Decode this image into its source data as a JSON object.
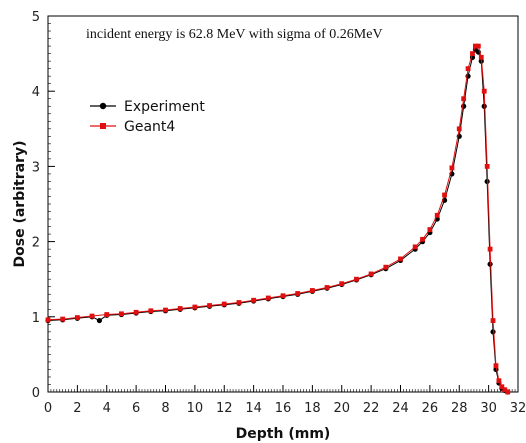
{
  "chart_data": {
    "type": "line",
    "xlabel": "Depth (mm)",
    "ylabel": "Dose (arbitrary)",
    "xlim": [
      0,
      32
    ],
    "ylim": [
      0,
      5
    ],
    "xticks": [
      "0",
      "2",
      "4",
      "6",
      "8",
      "10",
      "12",
      "14",
      "16",
      "18",
      "20",
      "22",
      "24",
      "26",
      "28",
      "30",
      "32"
    ],
    "yticks": [
      "0",
      "1",
      "2",
      "3",
      "4",
      "5"
    ],
    "annotation": "incident energy is 62.8 MeV with sigma of 0.26MeV",
    "legend_position": "upper-left",
    "grid": false,
    "series": [
      {
        "name": "Experiment",
        "color": "#000000",
        "marker": "circle",
        "x": [
          0,
          1,
          2,
          3,
          3.5,
          4,
          5,
          6,
          7,
          8,
          9,
          10,
          11,
          12,
          13,
          14,
          15,
          16,
          17,
          18,
          19,
          20,
          21,
          22,
          23,
          24,
          25,
          25.5,
          26,
          26.5,
          27,
          27.5,
          28,
          28.3,
          28.6,
          28.9,
          29.1,
          29.3,
          29.5,
          29.7,
          29.9,
          30.1,
          30.3,
          30.5,
          30.7,
          30.9,
          31.1,
          31.3
        ],
        "y": [
          0.95,
          0.96,
          0.98,
          1.0,
          0.95,
          1.02,
          1.03,
          1.05,
          1.07,
          1.08,
          1.1,
          1.12,
          1.14,
          1.16,
          1.18,
          1.21,
          1.24,
          1.27,
          1.3,
          1.34,
          1.38,
          1.43,
          1.49,
          1.56,
          1.64,
          1.75,
          1.9,
          2.0,
          2.12,
          2.3,
          2.55,
          2.9,
          3.4,
          3.8,
          4.2,
          4.45,
          4.55,
          4.52,
          4.4,
          3.8,
          2.8,
          1.7,
          0.8,
          0.3,
          0.12,
          0.05,
          0.02,
          0.0
        ]
      },
      {
        "name": "Geant4",
        "color": "#e01010",
        "marker": "square",
        "x": [
          0,
          1,
          2,
          3,
          4,
          5,
          6,
          7,
          8,
          9,
          10,
          11,
          12,
          13,
          14,
          15,
          16,
          17,
          18,
          19,
          20,
          21,
          22,
          23,
          24,
          25,
          25.5,
          26,
          26.5,
          27,
          27.5,
          28,
          28.3,
          28.6,
          28.9,
          29.1,
          29.3,
          29.5,
          29.7,
          29.9,
          30.1,
          30.3,
          30.5,
          30.7,
          30.9,
          31.1,
          31.3
        ],
        "y": [
          0.96,
          0.97,
          0.99,
          1.01,
          1.03,
          1.04,
          1.06,
          1.08,
          1.09,
          1.11,
          1.13,
          1.15,
          1.17,
          1.19,
          1.22,
          1.25,
          1.28,
          1.31,
          1.35,
          1.39,
          1.44,
          1.5,
          1.57,
          1.66,
          1.77,
          1.93,
          2.03,
          2.16,
          2.35,
          2.62,
          2.98,
          3.5,
          3.9,
          4.3,
          4.5,
          4.6,
          4.6,
          4.45,
          4.0,
          3.0,
          1.9,
          0.95,
          0.35,
          0.15,
          0.07,
          0.03,
          0.0
        ]
      }
    ]
  }
}
